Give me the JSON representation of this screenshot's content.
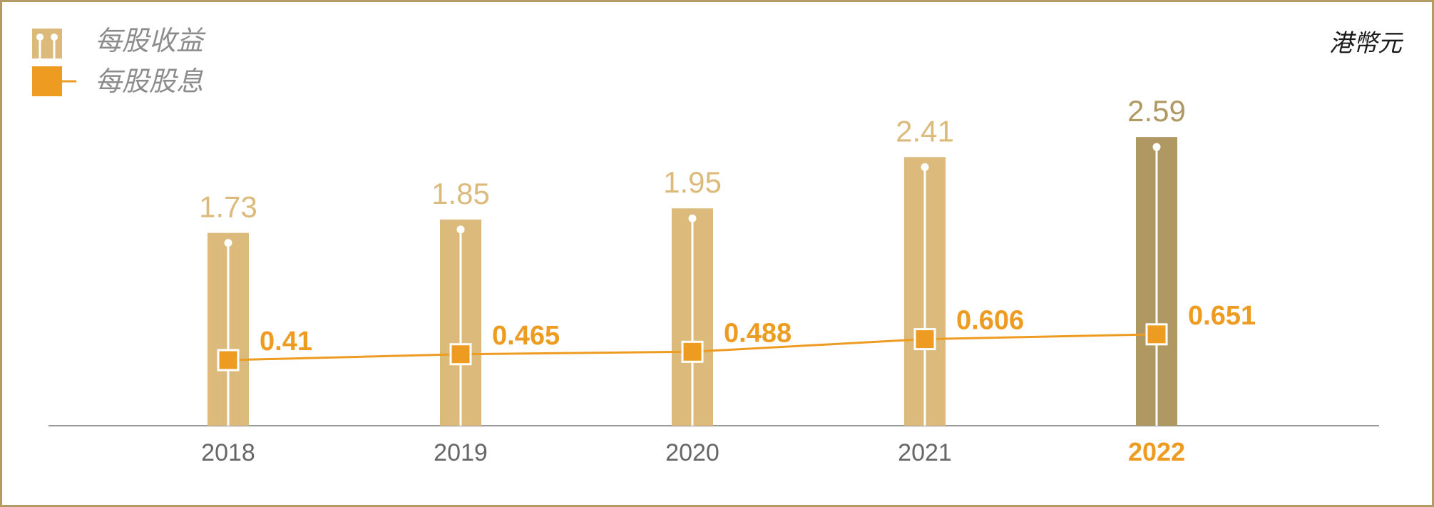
{
  "legend": {
    "eps_label": "每股收益",
    "dps_label": "每股股息"
  },
  "unit": "港幣元",
  "colors": {
    "eps_bar": "#dcba7c",
    "eps_bar_highlight": "#b09862",
    "dps_line": "#ee9b22",
    "axis": "#999999",
    "frame": "#b39b63"
  },
  "chart_data": {
    "type": "bar",
    "categories": [
      "2018",
      "2019",
      "2020",
      "2021",
      "2022"
    ],
    "highlight_category": "2022",
    "series": [
      {
        "name": "每股收益",
        "type": "bar",
        "values": [
          1.73,
          1.85,
          1.95,
          2.41,
          2.59
        ],
        "labels": [
          "1.73",
          "1.85",
          "1.95",
          "2.41",
          "2.59"
        ]
      },
      {
        "name": "每股股息",
        "type": "line",
        "values": [
          0.41,
          0.465,
          0.488,
          0.606,
          0.651
        ],
        "labels": [
          "0.41",
          "0.465",
          "0.488",
          "0.606",
          "0.651"
        ]
      }
    ],
    "ylim": [
      0,
      2.6
    ],
    "grid": false,
    "legend_position": "top-left"
  }
}
